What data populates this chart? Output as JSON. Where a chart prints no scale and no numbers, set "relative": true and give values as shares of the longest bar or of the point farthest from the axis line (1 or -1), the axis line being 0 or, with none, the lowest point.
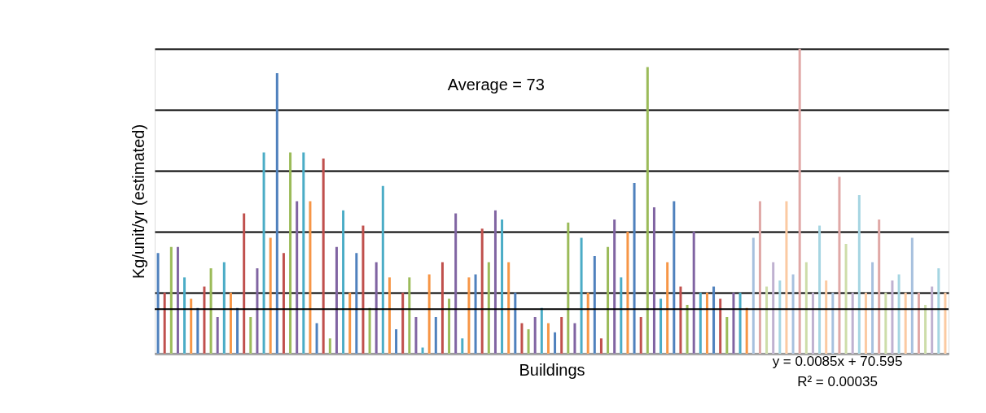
{
  "chart_data": {
    "type": "bar",
    "relative": true,
    "xlabel": "Buildings",
    "ylabel": "Kg/unit/yr (estimated)",
    "categories": [
      null,
      null,
      null,
      null,
      null,
      null,
      null,
      null,
      null,
      null,
      null,
      null,
      null,
      null,
      null,
      null,
      null,
      null,
      null,
      null,
      null,
      null,
      null,
      null,
      null,
      null,
      null,
      null,
      null,
      null,
      null,
      null,
      null,
      null,
      null,
      null,
      null,
      null,
      null,
      null,
      null,
      null,
      null,
      null,
      null,
      null,
      null,
      null,
      null,
      null,
      null,
      null,
      null,
      null,
      null,
      null,
      null,
      null,
      null,
      null,
      null,
      null,
      null,
      null,
      null,
      null,
      null,
      null,
      null,
      null,
      null,
      null,
      null,
      null,
      null,
      null,
      null,
      null,
      null,
      null,
      null,
      null,
      null,
      null,
      null,
      null,
      null,
      null,
      null,
      null,
      null,
      null,
      null,
      null,
      null,
      null,
      null,
      null,
      null,
      null,
      null,
      null,
      null,
      null,
      null,
      null,
      null,
      null,
      null,
      null,
      null,
      null,
      null,
      null,
      null,
      null,
      null,
      null,
      null,
      null
    ],
    "values": [
      0.33,
      0.2,
      0.35,
      0.35,
      0.25,
      0.18,
      0.15,
      0.22,
      0.28,
      0.12,
      0.3,
      0.2,
      0.15,
      0.46,
      0.12,
      0.28,
      0.66,
      0.38,
      0.92,
      0.33,
      0.66,
      0.5,
      0.66,
      0.5,
      0.1,
      0.64,
      0.05,
      0.35,
      0.47,
      0.2,
      0.33,
      0.42,
      0.15,
      0.3,
      0.55,
      0.25,
      0.08,
      0.2,
      0.25,
      0.12,
      0.02,
      0.26,
      0.12,
      0.3,
      0.18,
      0.46,
      0.05,
      0.25,
      0.26,
      0.41,
      0.3,
      0.47,
      0.44,
      0.3,
      0.2,
      0.1,
      0.08,
      0.12,
      0.15,
      0.1,
      0.07,
      0.12,
      0.43,
      0.1,
      0.38,
      0.2,
      0.32,
      0.05,
      0.35,
      0.44,
      0.25,
      0.4,
      0.56,
      0.12,
      0.94,
      0.48,
      0.18,
      0.3,
      0.5,
      0.22,
      0.16,
      0.4,
      0.2,
      0.2,
      0.22,
      0.18,
      0.12,
      0.2,
      0.2,
      0.15,
      0.38,
      0.5,
      0.22,
      0.3,
      0.24,
      0.5,
      0.26,
      1.0,
      0.3,
      0.2,
      0.42,
      0.24,
      0.2,
      0.58,
      0.36,
      0.2,
      0.52,
      0.2,
      0.3,
      0.44,
      0.2,
      0.24,
      0.26,
      0.2,
      0.38,
      0.2,
      0.16,
      0.22,
      0.28,
      0.2
    ],
    "colors": [
      "#4f81bd",
      "#c0504d",
      "#9bbb59",
      "#8064a2",
      "#4bacc6",
      "#f79646",
      "#4f81bd",
      "#c0504d",
      "#9bbb59",
      "#8064a2",
      "#4bacc6",
      "#f79646",
      "#4f81bd",
      "#c0504d",
      "#9bbb59",
      "#8064a2",
      "#4bacc6",
      "#f79646",
      "#4f81bd",
      "#c0504d",
      "#9bbb59",
      "#8064a2",
      "#4bacc6",
      "#f79646",
      "#4f81bd",
      "#c0504d",
      "#9bbb59",
      "#8064a2",
      "#4bacc6",
      "#f79646",
      "#4f81bd",
      "#c0504d",
      "#9bbb59",
      "#8064a2",
      "#4bacc6",
      "#f79646",
      "#4f81bd",
      "#c0504d",
      "#9bbb59",
      "#8064a2",
      "#4bacc6",
      "#f79646",
      "#4f81bd",
      "#c0504d",
      "#9bbb59",
      "#8064a2",
      "#4bacc6",
      "#f79646",
      "#4f81bd",
      "#c0504d",
      "#9bbb59",
      "#8064a2",
      "#4bacc6",
      "#f79646",
      "#4f81bd",
      "#c0504d",
      "#9bbb59",
      "#8064a2",
      "#4bacc6",
      "#f79646",
      "#4f81bd",
      "#c0504d",
      "#9bbb59",
      "#8064a2",
      "#4bacc6",
      "#f79646",
      "#4f81bd",
      "#c0504d",
      "#9bbb59",
      "#8064a2",
      "#4bacc6",
      "#f79646",
      "#4f81bd",
      "#c0504d",
      "#9bbb59",
      "#8064a2",
      "#4bacc6",
      "#f79646",
      "#4f81bd",
      "#c0504d",
      "#9bbb59",
      "#8064a2",
      "#4bacc6",
      "#f79646",
      "#4f81bd",
      "#c0504d",
      "#9bbb59",
      "#8064a2",
      "#4bacc6",
      "#f79646",
      "#a7c0de",
      "#e0a8a6",
      "#cddda9",
      "#bfb1d0",
      "#a5d5e2",
      "#fbcaa2",
      "#a7c0de",
      "#e0a8a6",
      "#cddda9",
      "#bfb1d0",
      "#a5d5e2",
      "#fbcaa2",
      "#a7c0de",
      "#e0a8a6",
      "#cddda9",
      "#bfb1d0",
      "#a5d5e2",
      "#fbcaa2",
      "#a7c0de",
      "#e0a8a6",
      "#cddda9",
      "#bfb1d0",
      "#a5d5e2",
      "#fbcaa2",
      "#a7c0de",
      "#e0a8a6",
      "#cddda9",
      "#bfb1d0",
      "#a5d5e2",
      "#fbcaa2"
    ],
    "ref_lines": [
      {
        "axis": "y",
        "value": 0.146,
        "color": "#000000"
      }
    ],
    "annotations": [
      "Average = 73",
      "y = 0.0085x + 70.595",
      "R² = 0.00035"
    ],
    "grid": "y",
    "tick_labels": false
  }
}
